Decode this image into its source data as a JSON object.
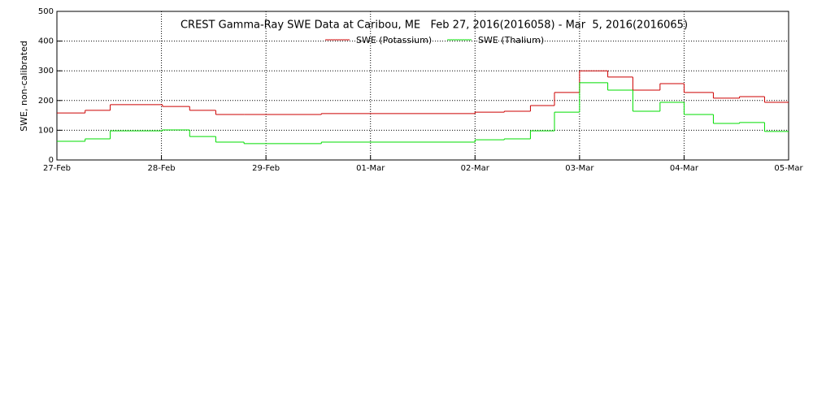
{
  "chart_data": {
    "type": "step",
    "title": "CREST Gamma-Ray SWE Data at Caribou, ME   Feb 27, 2016(2016058) - Mar  5, 2016(2016065)",
    "y_label": "SWE, non-calibrated",
    "x": [
      0,
      0.27,
      0.51,
      1.01,
      1.27,
      1.52,
      1.79,
      2.53,
      4.0,
      4.28,
      4.53,
      4.76,
      5.0,
      5.27,
      5.51,
      5.77,
      6.0,
      6.28,
      6.53,
      6.77,
      6.88
    ],
    "series": [
      {
        "name": "SWE (Potassium)",
        "color": "#cc0000",
        "values": [
          158,
          167,
          186,
          180,
          167,
          153,
          153,
          156,
          161,
          164,
          183,
          227,
          300,
          279,
          235,
          257,
          227,
          208,
          213,
          194,
          194
        ]
      },
      {
        "name": "SWE (Thalium)",
        "color": "#00dd00",
        "values": [
          63,
          71,
          98,
          101,
          79,
          60,
          55,
          60,
          68,
          71,
          98,
          161,
          260,
          235,
          164,
          194,
          153,
          123,
          126,
          96,
          96
        ]
      }
    ],
    "xlim": [
      0,
      7
    ],
    "xticks": [
      {
        "value": 0,
        "label": "27-Feb"
      },
      {
        "value": 1,
        "label": "28-Feb"
      },
      {
        "value": 2,
        "label": "29-Feb"
      },
      {
        "value": 3,
        "label": "01-Mar"
      },
      {
        "value": 4,
        "label": "02-Mar"
      },
      {
        "value": 5,
        "label": "03-Mar"
      },
      {
        "value": 6,
        "label": "04-Mar"
      },
      {
        "value": 7,
        "label": "05-Mar"
      }
    ],
    "ylim": [
      0,
      500
    ],
    "yticks": [
      0,
      100,
      200,
      300,
      400,
      500
    ],
    "grid": true,
    "legend": "top"
  }
}
